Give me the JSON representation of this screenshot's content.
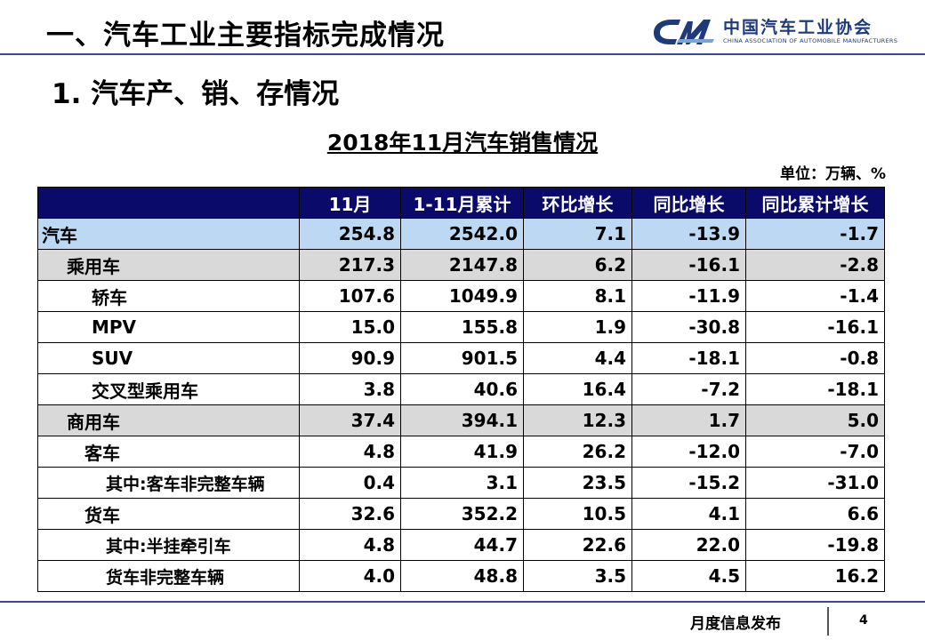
{
  "header": {
    "title": "一、汽车工业主要指标完成情况",
    "logo_cn": "中国汽车工业协会",
    "logo_en": "CHINA ASSOCIATION OF AUTOMOBILE MANUFACTURERS"
  },
  "section_title": "1. 汽车产、销、存情况",
  "table": {
    "title": "2018年11月汽车销售情况",
    "unit": "单位：万辆、%",
    "columns": [
      "",
      "11月",
      "1-11月累计",
      "环比增长",
      "同比增长",
      "同比累计增长"
    ],
    "rows": [
      {
        "label": "汽车",
        "values": [
          "254.8",
          "2542.0",
          "7.1",
          "-13.9",
          "-1.7"
        ]
      },
      {
        "label": "乘用车",
        "values": [
          "217.3",
          "2147.8",
          "6.2",
          "-16.1",
          "-2.8"
        ]
      },
      {
        "label": "轿车",
        "values": [
          "107.6",
          "1049.9",
          "8.1",
          "-11.9",
          "-1.4"
        ]
      },
      {
        "label": "MPV",
        "values": [
          "15.0",
          "155.8",
          "1.9",
          "-30.8",
          "-16.1"
        ]
      },
      {
        "label": "SUV",
        "values": [
          "90.9",
          "901.5",
          "4.4",
          "-18.1",
          "-0.8"
        ]
      },
      {
        "label": "交叉型乘用车",
        "values": [
          "3.8",
          "40.6",
          "16.4",
          "-7.2",
          "-18.1"
        ]
      },
      {
        "label": "商用车",
        "values": [
          "37.4",
          "394.1",
          "12.3",
          "1.7",
          "5.0"
        ]
      },
      {
        "label": "客车",
        "values": [
          "4.8",
          "41.9",
          "26.2",
          "-12.0",
          "-7.0"
        ]
      },
      {
        "label": "其中:客车非完整车辆",
        "values": [
          "0.4",
          "3.1",
          "23.5",
          "-15.2",
          "-31.0"
        ]
      },
      {
        "label": "货车",
        "values": [
          "32.6",
          "352.2",
          "10.5",
          "4.1",
          "6.6"
        ]
      },
      {
        "label": "其中:半挂牵引车",
        "values": [
          "4.8",
          "44.7",
          "22.6",
          "22.0",
          "-19.8"
        ]
      },
      {
        "label": "货车非完整车辆",
        "values": [
          "4.0",
          "48.8",
          "3.5",
          "4.5",
          "16.2"
        ]
      }
    ]
  },
  "footer": {
    "text": "月度信息发布",
    "page": "4"
  },
  "colors": {
    "header_bg": "#0a0a6a",
    "total_row_bg": "#bcd8f2",
    "category_row_bg": "#d9d9d9",
    "rule": "#3b4a8c"
  }
}
